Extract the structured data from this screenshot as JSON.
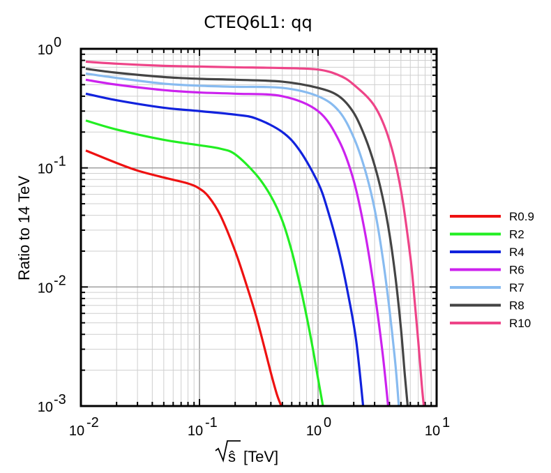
{
  "chart_data": {
    "type": "line",
    "title": "CTEQ6L1: qq",
    "xlabel_root": "ŝ",
    "xlabel_unit": "[TeV]",
    "ylabel": "Ratio to 14 TeV",
    "xscale": "log",
    "yscale": "log",
    "xlim": [
      0.01,
      10
    ],
    "ylim": [
      0.001,
      1
    ],
    "grid": true,
    "legend_position": "right",
    "x_ticks": [
      {
        "base": "10",
        "exp": "-2"
      },
      {
        "base": "10",
        "exp": "-1"
      },
      {
        "base": "10",
        "exp": "0"
      },
      {
        "base": "10",
        "exp": "1"
      }
    ],
    "y_ticks": [
      {
        "base": "10",
        "exp": "-3"
      },
      {
        "base": "10",
        "exp": "-2"
      },
      {
        "base": "10",
        "exp": "-1"
      },
      {
        "base": "10",
        "exp": "0"
      }
    ],
    "series": [
      {
        "name": "R0.9",
        "color": "#ee1111",
        "x": [
          0.011,
          0.02,
          0.03,
          0.05,
          0.08,
          0.1,
          0.12,
          0.15,
          0.2,
          0.25,
          0.3,
          0.35,
          0.4,
          0.45,
          0.49
        ],
        "y": [
          0.14,
          0.11,
          0.095,
          0.083,
          0.074,
          0.067,
          0.057,
          0.04,
          0.02,
          0.0103,
          0.0057,
          0.0032,
          0.0019,
          0.00125,
          0.001
        ]
      },
      {
        "name": "R2",
        "color": "#22ee22",
        "x": [
          0.011,
          0.02,
          0.05,
          0.1,
          0.15,
          0.2,
          0.3,
          0.4,
          0.5,
          0.6,
          0.7,
          0.8,
          0.9,
          1.0,
          1.1
        ],
        "y": [
          0.25,
          0.21,
          0.172,
          0.155,
          0.145,
          0.13,
          0.088,
          0.058,
          0.036,
          0.02,
          0.0106,
          0.0057,
          0.0031,
          0.0017,
          0.001
        ]
      },
      {
        "name": "R4",
        "color": "#1122dd",
        "x": [
          0.011,
          0.02,
          0.05,
          0.1,
          0.2,
          0.3,
          0.5,
          0.7,
          1.0,
          1.2,
          1.5,
          1.8,
          2.1,
          2.4
        ],
        "y": [
          0.42,
          0.37,
          0.32,
          0.3,
          0.28,
          0.26,
          0.2,
          0.14,
          0.075,
          0.045,
          0.02,
          0.0085,
          0.0035,
          0.001
        ]
      },
      {
        "name": "R6",
        "color": "#cc22ee",
        "x": [
          0.011,
          0.02,
          0.05,
          0.1,
          0.2,
          0.5,
          1.0,
          1.5,
          2.0,
          2.5,
          3.0,
          3.5,
          3.9
        ],
        "y": [
          0.55,
          0.5,
          0.45,
          0.43,
          0.42,
          0.4,
          0.3,
          0.17,
          0.078,
          0.028,
          0.009,
          0.0028,
          0.001
        ]
      },
      {
        "name": "R7",
        "color": "#88bbf0",
        "x": [
          0.011,
          0.02,
          0.05,
          0.1,
          0.2,
          0.5,
          1.0,
          1.5,
          2.0,
          2.5,
          3.0,
          3.5,
          4.0,
          4.5,
          4.8
        ],
        "y": [
          0.62,
          0.57,
          0.51,
          0.49,
          0.48,
          0.47,
          0.4,
          0.3,
          0.18,
          0.095,
          0.045,
          0.018,
          0.0065,
          0.0022,
          0.001
        ]
      },
      {
        "name": "R8",
        "color": "#444444",
        "x": [
          0.011,
          0.02,
          0.05,
          0.1,
          0.2,
          0.5,
          1.0,
          1.5,
          2.0,
          2.5,
          3.0,
          3.5,
          4.0,
          4.5,
          5.0,
          5.4,
          5.7
        ],
        "y": [
          0.68,
          0.63,
          0.58,
          0.56,
          0.55,
          0.53,
          0.47,
          0.4,
          0.29,
          0.18,
          0.105,
          0.057,
          0.028,
          0.012,
          0.0045,
          0.0018,
          0.001
        ]
      },
      {
        "name": "R10",
        "color": "#ee4488",
        "x": [
          0.011,
          0.02,
          0.05,
          0.1,
          0.2,
          0.5,
          1.0,
          1.5,
          2.0,
          3.0,
          4.0,
          5.0,
          6.0,
          6.5,
          7.0,
          7.5,
          7.8
        ],
        "y": [
          0.78,
          0.75,
          0.72,
          0.71,
          0.7,
          0.69,
          0.67,
          0.6,
          0.5,
          0.33,
          0.17,
          0.065,
          0.018,
          0.008,
          0.0035,
          0.0015,
          0.001
        ]
      }
    ]
  }
}
